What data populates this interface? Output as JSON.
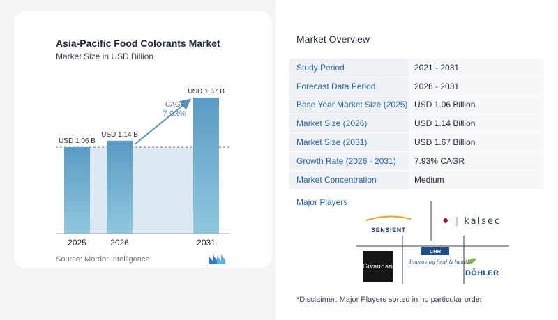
{
  "chart": {
    "title": "Asia-Pacific Food Colorants Market",
    "subtitle": "Market Size in USD Billion",
    "source": "Source:  Mordor Intelligence",
    "cagr_label": "CAGR",
    "cagr_value": "7.93%"
  },
  "chart_data": {
    "type": "bar",
    "categories": [
      "2025",
      "2026",
      "2031"
    ],
    "values": [
      1.06,
      1.14,
      1.67
    ],
    "value_labels": [
      "USD 1.06 B",
      "USD 1.14 B",
      "USD 1.67 B"
    ],
    "title": "Asia-Pacific Food Colorants Market",
    "subtitle": "Market Size in USD Billion",
    "xlabel": "",
    "ylabel": "",
    "ylim": [
      0,
      1.72
    ],
    "grid": false,
    "reference_line_value": 1.06,
    "annotation": "CAGR 7.93%"
  },
  "overview": {
    "title": "Market Overview",
    "rows": [
      {
        "label": "Study Period",
        "value": "2021 - 2031"
      },
      {
        "label": "Forecast Data Period",
        "value": "2026 - 2031"
      },
      {
        "label": "Base Year Market Size (2025)",
        "value": "USD 1.06 Billion"
      },
      {
        "label": "Market Size (2026)",
        "value": "USD 1.14 Billion"
      },
      {
        "label": "Market Size (2031)",
        "value": "USD 1.67 Billion"
      },
      {
        "label": "Growth Rate (2026 - 2031)",
        "value": "7.93% CAGR"
      },
      {
        "label": "Market Concentration",
        "value": "Medium"
      }
    ]
  },
  "players": {
    "title": "Major Players",
    "logos": [
      "SENSIENT",
      "kalsec",
      "Givaudan",
      "CHR HANSEN",
      "Improving food & health",
      "DÖHLER"
    ]
  },
  "disclaimer": "*Disclaimer: Major Players sorted in no particular order",
  "colors": {
    "bar": "#5b9bc4",
    "bar_light": "#8fc3dc",
    "area": "#dce9f3",
    "label_blue": "#2563a8",
    "accent_cagr": "#5b8fb9"
  }
}
